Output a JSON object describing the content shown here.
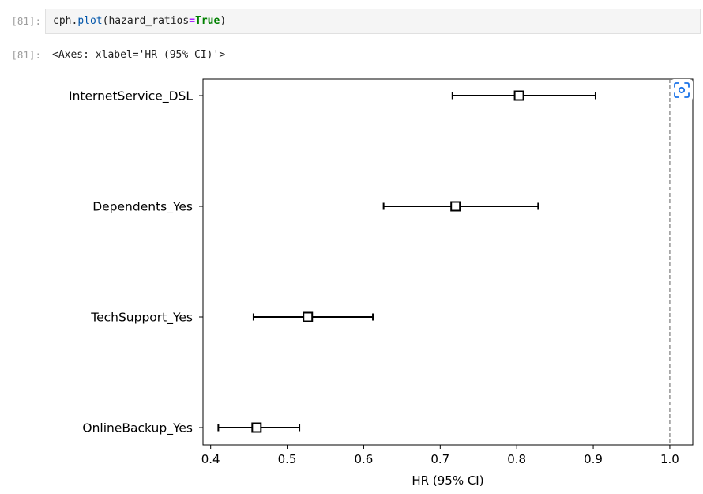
{
  "cell": {
    "in_prompt": "[81]:",
    "out_prompt": "[81]:",
    "code": {
      "object": "cph",
      "dot": ".",
      "method": "plot",
      "open": "(",
      "arg_name": "hazard_ratios",
      "equals": "=",
      "arg_value": "True",
      "close": ")"
    },
    "output_text": "<Axes: xlabel='HR (95% CI)'>"
  },
  "toolbar": {
    "snapshot_icon": "screenshot-capture-icon"
  },
  "chart_data": {
    "type": "scatter",
    "title": "",
    "xlabel": "HR (95% CI)",
    "ylabel": "",
    "xlim": [
      0.39,
      1.03
    ],
    "xticks": [
      0.4,
      0.5,
      0.6,
      0.7,
      0.8,
      0.9,
      1.0
    ],
    "xtick_labels": [
      "0.4",
      "0.5",
      "0.6",
      "0.7",
      "0.8",
      "0.9",
      "1.0"
    ],
    "reference_line": 1.0,
    "grid": false,
    "legend": "none",
    "marker": "hollow-square",
    "color": "#000000",
    "points": [
      {
        "label": "InternetService_DSL",
        "hr": 0.803,
        "lower": 0.716,
        "upper": 0.903
      },
      {
        "label": "Dependents_Yes",
        "hr": 0.72,
        "lower": 0.626,
        "upper": 0.828
      },
      {
        "label": "TechSupport_Yes",
        "hr": 0.527,
        "lower": 0.456,
        "upper": 0.612
      },
      {
        "label": "OnlineBackup_Yes",
        "hr": 0.46,
        "lower": 0.41,
        "upper": 0.516
      }
    ]
  }
}
